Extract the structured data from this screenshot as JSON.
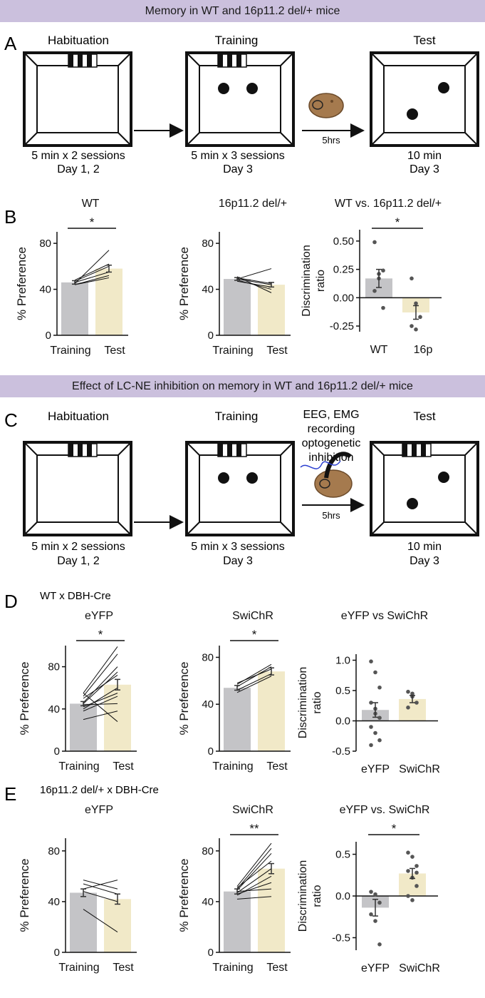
{
  "banners": {
    "top": "Memory in WT and 16p11.2 del/+ mice",
    "middle": "Effect of LC-NE inhibition on memory in WT and 16p11.2 del/+ mice"
  },
  "panel_letters": {
    "a": "A",
    "b": "B",
    "c": "C",
    "d": "D",
    "e": "E"
  },
  "protocol_a": {
    "stages": [
      {
        "title": "Habituation",
        "line1": "5 min x 2 sessions",
        "line2": "Day 1, 2"
      },
      {
        "title": "Training",
        "line1": "5 min x 3 sessions",
        "line2": "Day 3"
      },
      {
        "title": "Test",
        "line1": "10 min",
        "line2": "Day 3"
      }
    ],
    "delay_label": "5hrs"
  },
  "protocol_c": {
    "stages": [
      {
        "title": "Habituation",
        "line1": "5 min x 2 sessions",
        "line2": "Day 1, 2"
      },
      {
        "title": "Training",
        "line1": "5 min x 3 sessions",
        "line2": "Day 3"
      },
      {
        "title": "Test",
        "line1": "10 min",
        "line2": "Day 3"
      }
    ],
    "delay_label": "5hrs",
    "procedure_lines": [
      "EEG, EMG",
      "recording",
      "optogenetic",
      "inhibition"
    ]
  },
  "group_labels": {
    "d": "WT x DBH-Cre",
    "e": "16p11.2 del/+ x DBH-Cre"
  },
  "colors": {
    "gray_bar": "#c4c4c7",
    "cream_bar": "#f1e9c8",
    "banner": "#cbc0dd",
    "dot": "#555555"
  },
  "chart_data": [
    {
      "id": "b1",
      "type": "bar",
      "title": "WT",
      "categories": [
        "Training",
        "Test"
      ],
      "values": [
        46,
        58
      ],
      "errors": [
        1.5,
        3
      ],
      "ylim": [
        0,
        90
      ],
      "yticks": [
        0,
        40,
        80
      ],
      "ylabel": "% Preference",
      "xlabel": "",
      "paired_lines": [
        [
          44,
          52
        ],
        [
          46,
          55
        ],
        [
          47,
          60
        ],
        [
          45,
          74
        ],
        [
          48,
          62
        ],
        [
          44,
          50
        ]
      ],
      "significance": "*"
    },
    {
      "id": "b2",
      "type": "bar",
      "title": "16p11.2 del/+",
      "categories": [
        "Training",
        "Test"
      ],
      "values": [
        49,
        44
      ],
      "errors": [
        1.2,
        2
      ],
      "ylim": [
        0,
        90
      ],
      "yticks": [
        0,
        40,
        80
      ],
      "ylabel": "% Preference",
      "xlabel": "",
      "paired_lines": [
        [
          49,
          58
        ],
        [
          50,
          45
        ],
        [
          48,
          40
        ],
        [
          51,
          37
        ],
        [
          47,
          42
        ],
        [
          49,
          44
        ]
      ],
      "significance": ""
    },
    {
      "id": "b3",
      "type": "bar",
      "title": "WT vs. 16p11.2 del/+",
      "categories": [
        "WT",
        "16p"
      ],
      "values": [
        0.17,
        -0.13
      ],
      "errors": [
        0.08,
        0.06
      ],
      "ylim": [
        -0.3,
        0.6
      ],
      "yticks": [
        -0.25,
        0.0,
        0.25,
        0.5
      ],
      "ytick_labels": [
        "-0.25",
        "0.00",
        "0.25",
        "0.50"
      ],
      "ylabel": "Discrimination ratio",
      "xlabel": "",
      "points": [
        [
          0.49,
          0.21,
          0.24,
          0.06,
          0.17,
          -0.09
        ],
        [
          0.17,
          -0.05,
          -0.17,
          -0.25,
          -0.28
        ]
      ],
      "significance": "*"
    },
    {
      "id": "d1",
      "type": "bar",
      "title": "eYFP",
      "categories": [
        "Training",
        "Test"
      ],
      "values": [
        45,
        63
      ],
      "errors": [
        2,
        5
      ],
      "ylim": [
        0,
        100
      ],
      "yticks": [
        0,
        40,
        80
      ],
      "ylabel": "% Preference",
      "xlabel": "",
      "paired_lines": [
        [
          55,
          99
        ],
        [
          52,
          92
        ],
        [
          46,
          80
        ],
        [
          45,
          75
        ],
        [
          50,
          72
        ],
        [
          40,
          60
        ],
        [
          42,
          55
        ],
        [
          38,
          52
        ],
        [
          44,
          45
        ],
        [
          30,
          38
        ],
        [
          55,
          28
        ]
      ],
      "significance": "*"
    },
    {
      "id": "d2",
      "type": "bar",
      "title": "SwiChR",
      "categories": [
        "Training",
        "Test"
      ],
      "values": [
        54,
        68
      ],
      "errors": [
        2,
        3
      ],
      "ylim": [
        0,
        90
      ],
      "yticks": [
        0,
        40,
        80
      ],
      "ylabel": "% Preference",
      "xlabel": "",
      "paired_lines": [
        [
          57,
          74
        ],
        [
          55,
          72
        ],
        [
          52,
          66
        ],
        [
          58,
          70
        ],
        [
          50,
          64
        ]
      ],
      "significance": "*"
    },
    {
      "id": "d3",
      "type": "bar",
      "title": "eYFP vs SwiChR",
      "categories": [
        "eYFP",
        "SwiChR"
      ],
      "values": [
        0.18,
        0.36
      ],
      "errors": [
        0.12,
        0.06
      ],
      "ylim": [
        -0.5,
        1.1
      ],
      "yticks": [
        -0.5,
        0.0,
        0.5,
        1.0
      ],
      "ytick_labels": [
        "-0.5",
        "0.0",
        "0.5",
        "1.0"
      ],
      "ylabel": "Discrimination ratio",
      "xlabel": "",
      "points": [
        [
          0.98,
          0.8,
          0.55,
          0.3,
          0.12,
          0.05,
          -0.1,
          -0.2,
          -0.32,
          -0.4,
          0.2
        ],
        [
          0.48,
          0.45,
          0.3,
          0.22,
          0.4
        ]
      ],
      "significance": ""
    },
    {
      "id": "e1",
      "type": "bar",
      "title": "eYFP",
      "categories": [
        "Training",
        "Test"
      ],
      "values": [
        47,
        42
      ],
      "errors": [
        3,
        4
      ],
      "ylim": [
        0,
        90
      ],
      "yticks": [
        0,
        40,
        80
      ],
      "ylabel": "% Preference",
      "xlabel": "",
      "paired_lines": [
        [
          57,
          50
        ],
        [
          54,
          46
        ],
        [
          50,
          57
        ],
        [
          48,
          40
        ],
        [
          34,
          16
        ]
      ],
      "significance": ""
    },
    {
      "id": "e2",
      "type": "bar",
      "title": "SwiChR",
      "categories": [
        "Training",
        "Test"
      ],
      "values": [
        48,
        66
      ],
      "errors": [
        2,
        4
      ],
      "ylim": [
        0,
        90
      ],
      "yticks": [
        0,
        40,
        80
      ],
      "ylabel": "% Preference",
      "xlabel": "",
      "paired_lines": [
        [
          52,
          86
        ],
        [
          50,
          82
        ],
        [
          49,
          78
        ],
        [
          51,
          72
        ],
        [
          47,
          66
        ],
        [
          45,
          60
        ],
        [
          46,
          55
        ],
        [
          48,
          50
        ],
        [
          42,
          44
        ]
      ],
      "significance": "**"
    },
    {
      "id": "e3",
      "type": "bar",
      "title": "eYFP vs. SwiChR",
      "categories": [
        "eYFP",
        "SwiChR"
      ],
      "values": [
        -0.14,
        0.27
      ],
      "errors": [
        0.1,
        0.06
      ],
      "ylim": [
        -0.65,
        0.65
      ],
      "yticks": [
        -0.5,
        0.0,
        0.5
      ],
      "ytick_labels": [
        "-0.5",
        "0.0",
        "0.5"
      ],
      "ylabel": "Discrimination ratio",
      "xlabel": "",
      "points": [
        [
          0.05,
          0.02,
          -0.08,
          -0.22,
          -0.3,
          -0.58
        ],
        [
          0.52,
          0.47,
          0.36,
          0.3,
          0.22,
          0.12,
          0.0,
          -0.05,
          0.28
        ]
      ],
      "significance": "*"
    }
  ]
}
